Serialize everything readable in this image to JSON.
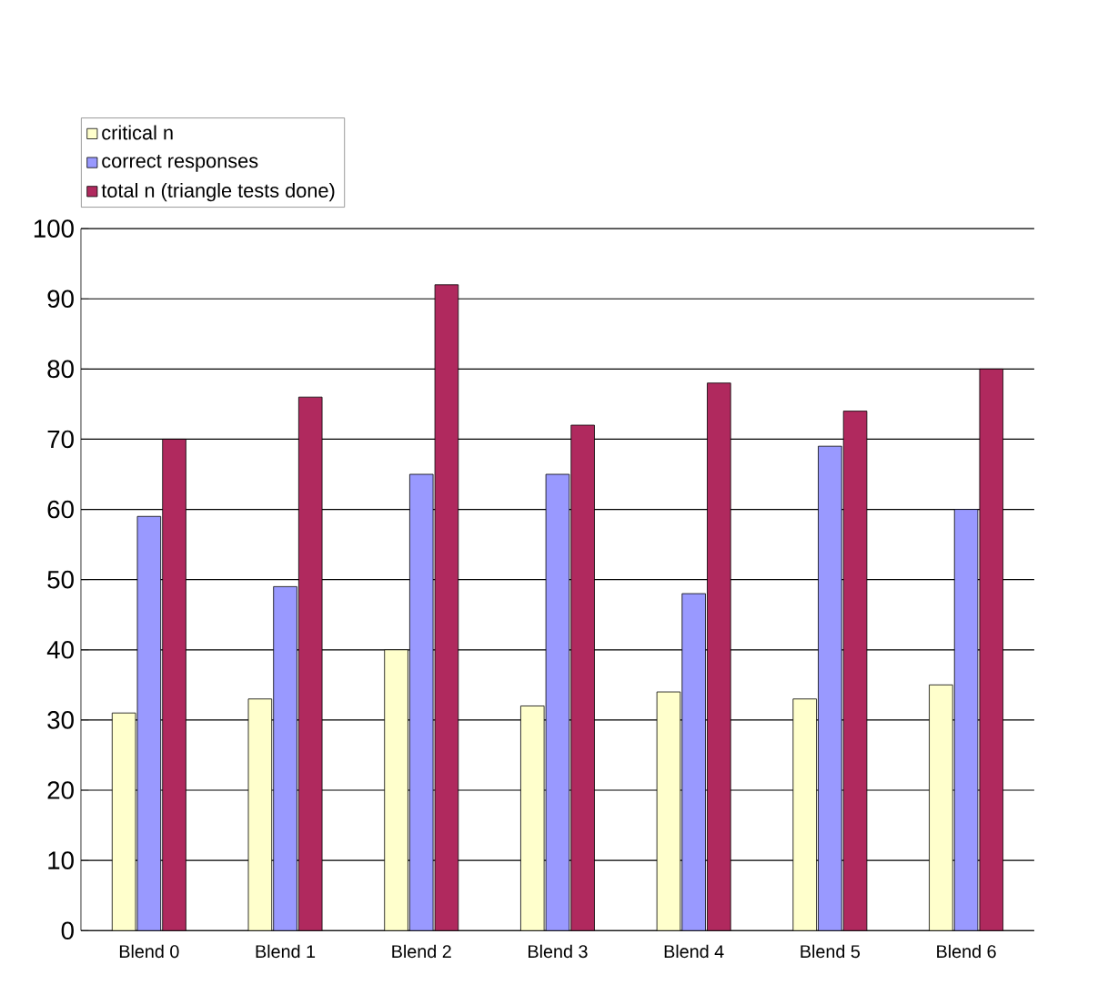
{
  "chart_data": {
    "type": "bar",
    "categories": [
      "Blend 0",
      "Blend 1",
      "Blend 2",
      "Blend 3",
      "Blend 4",
      "Blend 5",
      "Blend 6"
    ],
    "series": [
      {
        "name": "critical n",
        "color": "#ffffcc",
        "values": [
          31,
          33,
          40,
          32,
          34,
          33,
          35
        ]
      },
      {
        "name": "correct responses",
        "color": "#9999ff",
        "values": [
          59,
          49,
          65,
          65,
          48,
          69,
          60
        ]
      },
      {
        "name": "total n (triangle tests done)",
        "color": "#b0295e",
        "values": [
          70,
          76,
          92,
          72,
          78,
          74,
          80
        ]
      }
    ],
    "ylim": [
      0,
      100
    ],
    "yticks": [
      0,
      10,
      20,
      30,
      40,
      50,
      60,
      70,
      80,
      90,
      100
    ],
    "grid": "y",
    "legend": "top left"
  }
}
